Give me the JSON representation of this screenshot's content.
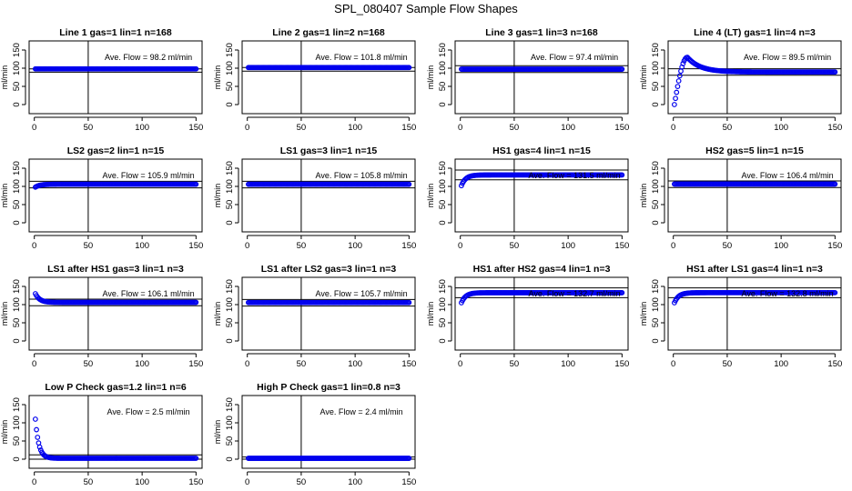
{
  "figure": {
    "title": "SPL_080407  Sample Flow Shapes"
  },
  "chart_data": [
    {
      "type": "scatter",
      "title": "Line 1 gas=1 lin=1 n=168",
      "ylabel": "ml/min",
      "xlim": [
        0,
        150
      ],
      "ylim": [
        0,
        150
      ],
      "xticks": [
        0,
        50,
        100,
        150
      ],
      "yticks": [
        0,
        50,
        100,
        150
      ],
      "annotation": "Ave. Flow =  98.2  ml/min",
      "hlines": [
        98.2,
        89
      ],
      "vline": 50,
      "shape": "flat",
      "start": 98.2,
      "steady": 98.2
    },
    {
      "type": "scatter",
      "title": "Line 2 gas=1 lin=2 n=168",
      "ylabel": "ml/min",
      "xlim": [
        0,
        150
      ],
      "ylim": [
        0,
        150
      ],
      "xticks": [
        0,
        50,
        100,
        150
      ],
      "yticks": [
        0,
        50,
        100,
        150
      ],
      "annotation": "Ave. Flow =  101.8  ml/min",
      "hlines": [
        101.8,
        92
      ],
      "vline": 50,
      "shape": "flat",
      "start": 101.8,
      "steady": 101.8
    },
    {
      "type": "scatter",
      "title": "Line 3 gas=1 lin=3 n=168",
      "ylabel": "ml/min",
      "xlim": [
        0,
        150
      ],
      "ylim": [
        0,
        150
      ],
      "xticks": [
        0,
        50,
        100,
        150
      ],
      "yticks": [
        0,
        50,
        100,
        150
      ],
      "annotation": "Ave. Flow =  97.4  ml/min",
      "hlines": [
        107,
        88
      ],
      "vline": 50,
      "shape": "flat",
      "start": 97.4,
      "steady": 97.4
    },
    {
      "type": "scatter",
      "title": "Line 4 (LT) gas=1 lin=4 n=3",
      "ylabel": "ml/min",
      "xlim": [
        0,
        150
      ],
      "ylim": [
        0,
        150
      ],
      "xticks": [
        0,
        50,
        100,
        150
      ],
      "yticks": [
        0,
        50,
        100,
        150
      ],
      "annotation": "Ave. Flow =  89.5  ml/min",
      "hlines": [
        98.5,
        80.5
      ],
      "vline": 50,
      "shape": "overshoot",
      "start": 0,
      "peak": 130,
      "peak_x": 13,
      "steady": 89.5
    },
    {
      "type": "scatter",
      "title": "LS2 gas=2 lin=1 n=15",
      "ylabel": "ml/min",
      "xlim": [
        0,
        150
      ],
      "ylim": [
        0,
        150
      ],
      "xticks": [
        0,
        50,
        100,
        150
      ],
      "yticks": [
        0,
        50,
        100,
        150
      ],
      "annotation": "Ave. Flow =  105.9  ml/min",
      "hlines": [
        114,
        96
      ],
      "vline": 50,
      "shape": "rise",
      "start": 98,
      "steady": 105.9
    },
    {
      "type": "scatter",
      "title": "LS1 gas=3 lin=1 n=15",
      "ylabel": "ml/min",
      "xlim": [
        0,
        150
      ],
      "ylim": [
        0,
        150
      ],
      "xticks": [
        0,
        50,
        100,
        150
      ],
      "yticks": [
        0,
        50,
        100,
        150
      ],
      "annotation": "Ave. Flow =  105.8  ml/min",
      "hlines": [
        114,
        96
      ],
      "vline": 50,
      "shape": "flat",
      "start": 105.8,
      "steady": 105.8
    },
    {
      "type": "scatter",
      "title": "HS1 gas=4 lin=1 n=15",
      "ylabel": "ml/min",
      "xlim": [
        0,
        150
      ],
      "ylim": [
        0,
        150
      ],
      "xticks": [
        0,
        50,
        100,
        150
      ],
      "yticks": [
        0,
        50,
        100,
        150
      ],
      "annotation": "Ave. Flow =  131.5  ml/min",
      "hlines": [
        145,
        118
      ],
      "vline": 50,
      "shape": "rise",
      "start": 102,
      "steady": 131.5
    },
    {
      "type": "scatter",
      "title": "HS2 gas=5 lin=1 n=15",
      "ylabel": "ml/min",
      "xlim": [
        0,
        150
      ],
      "ylim": [
        0,
        150
      ],
      "xticks": [
        0,
        50,
        100,
        150
      ],
      "yticks": [
        0,
        50,
        100,
        150
      ],
      "annotation": "Ave. Flow =  106.4  ml/min",
      "hlines": [
        115,
        97
      ],
      "vline": 50,
      "shape": "flat",
      "start": 106.4,
      "steady": 106.4
    },
    {
      "type": "scatter",
      "title": "LS1 after HS1 gas=3 lin=1 n=3",
      "ylabel": "ml/min",
      "xlim": [
        0,
        150
      ],
      "ylim": [
        0,
        150
      ],
      "xticks": [
        0,
        50,
        100,
        150
      ],
      "yticks": [
        0,
        50,
        100,
        150
      ],
      "annotation": "Ave. Flow =  106.1  ml/min",
      "hlines": [
        115,
        97
      ],
      "vline": 50,
      "shape": "fall",
      "start": 130,
      "steady": 106.1
    },
    {
      "type": "scatter",
      "title": "LS1 after LS2 gas=3 lin=1 n=3",
      "ylabel": "ml/min",
      "xlim": [
        0,
        150
      ],
      "ylim": [
        0,
        150
      ],
      "xticks": [
        0,
        50,
        100,
        150
      ],
      "yticks": [
        0,
        50,
        100,
        150
      ],
      "annotation": "Ave. Flow =  105.7  ml/min",
      "hlines": [
        114,
        96
      ],
      "vline": 50,
      "shape": "flat",
      "start": 105.7,
      "steady": 105.7
    },
    {
      "type": "scatter",
      "title": "HS1 after HS2 gas=4 lin=1 n=3",
      "ylabel": "ml/min",
      "xlim": [
        0,
        150
      ],
      "ylim": [
        0,
        150
      ],
      "xticks": [
        0,
        50,
        100,
        150
      ],
      "yticks": [
        0,
        50,
        100,
        150
      ],
      "annotation": "Ave. Flow =  132.7  ml/min",
      "hlines": [
        146,
        119
      ],
      "vline": 50,
      "shape": "rise",
      "start": 105,
      "steady": 132.7
    },
    {
      "type": "scatter",
      "title": "HS1 after LS1 gas=4 lin=1 n=3",
      "ylabel": "ml/min",
      "xlim": [
        0,
        150
      ],
      "ylim": [
        0,
        150
      ],
      "xticks": [
        0,
        50,
        100,
        150
      ],
      "yticks": [
        0,
        50,
        100,
        150
      ],
      "annotation": "Ave. Flow =  132.8  ml/min",
      "hlines": [
        146,
        119
      ],
      "vline": 50,
      "shape": "rise",
      "start": 105,
      "steady": 132.8
    },
    {
      "type": "scatter",
      "title": "Low P Check gas=1.2 lin=1 n=6",
      "ylabel": "ml/min",
      "xlim": [
        0,
        150
      ],
      "ylim": [
        0,
        150
      ],
      "xticks": [
        0,
        50,
        100,
        150
      ],
      "yticks": [
        0,
        50,
        100,
        150
      ],
      "annotation": "Ave. Flow =  2.5  ml/min",
      "hlines": [
        12,
        0
      ],
      "vline": 50,
      "shape": "decay",
      "start": 110,
      "steady": 2.5
    },
    {
      "type": "scatter",
      "title": "High P Check gas=1 lin=0.8 n=3",
      "ylabel": "ml/min",
      "xlim": [
        0,
        150
      ],
      "ylim": [
        0,
        150
      ],
      "xticks": [
        0,
        50,
        100,
        150
      ],
      "yticks": [
        0,
        50,
        100,
        150
      ],
      "annotation": "Ave. Flow =  2.4  ml/min",
      "hlines": [
        6,
        0
      ],
      "vline": 50,
      "shape": "flat",
      "start": 2.4,
      "steady": 2.4
    }
  ],
  "colors": {
    "points": "#0000ee",
    "lines": "#000000",
    "axes": "#000000"
  }
}
